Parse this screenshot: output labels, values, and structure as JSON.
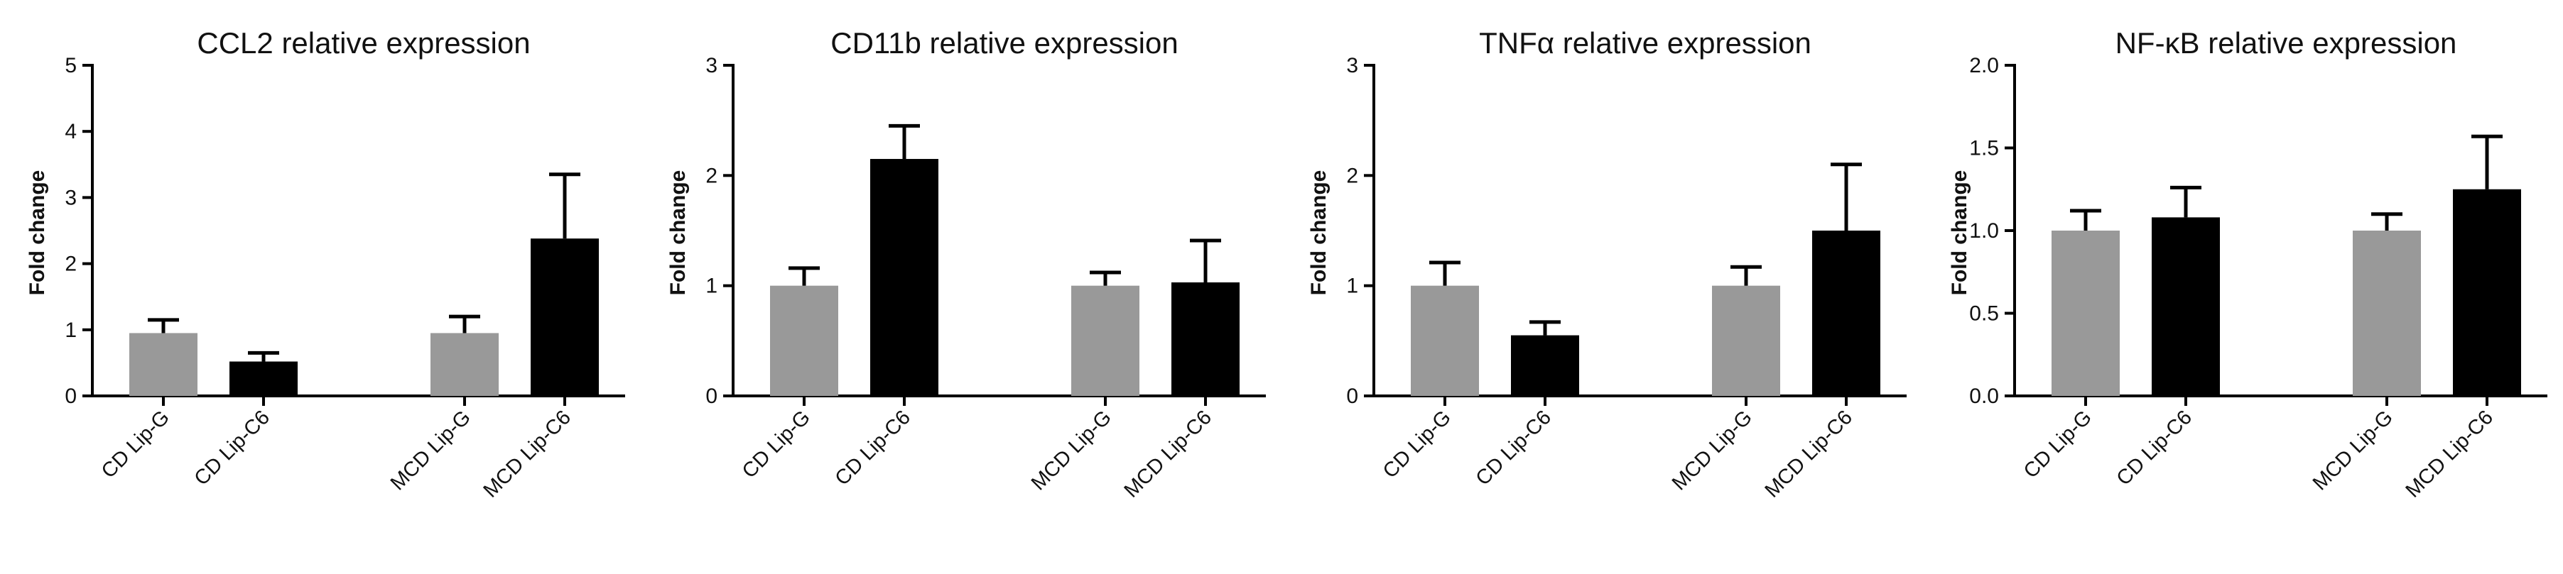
{
  "figure": {
    "chart_data": [
      {
        "type": "bar",
        "title": "CCL2 relative expression",
        "ylabel": "Fold change",
        "xlabel": "",
        "categories": [
          "CD Lip-G",
          "CD Lip-C6",
          "MCD Lip-G",
          "MCD Lip-C6"
        ],
        "values": [
          0.95,
          0.52,
          0.95,
          2.38
        ],
        "errors": [
          0.2,
          0.13,
          0.25,
          0.97
        ],
        "ylim": [
          0,
          5
        ],
        "yticks": [
          "0",
          "1",
          "2",
          "3",
          "4",
          "5"
        ],
        "grid": false,
        "bar_colors": [
          "#999999",
          "#000000",
          "#999999",
          "#000000"
        ]
      },
      {
        "type": "bar",
        "title": "CD11b relative expression",
        "ylabel": "Fold change",
        "xlabel": "",
        "categories": [
          "CD Lip-G",
          "CD Lip-C6",
          "MCD Lip-G",
          "MCD Lip-C6"
        ],
        "values": [
          1.0,
          2.15,
          1.0,
          1.03
        ],
        "errors": [
          0.16,
          0.3,
          0.12,
          0.38
        ],
        "ylim": [
          0,
          3
        ],
        "yticks": [
          "0",
          "1",
          "2",
          "3"
        ],
        "grid": false,
        "bar_colors": [
          "#999999",
          "#000000",
          "#999999",
          "#000000"
        ]
      },
      {
        "type": "bar",
        "title": "TNFα relative expression",
        "ylabel": "Fold change",
        "xlabel": "",
        "categories": [
          "CD Lip-G",
          "CD Lip-C6",
          "MCD Lip-G",
          "MCD Lip-C6"
        ],
        "values": [
          1.0,
          0.55,
          1.0,
          1.5
        ],
        "errors": [
          0.21,
          0.12,
          0.17,
          0.6
        ],
        "ylim": [
          0,
          3
        ],
        "yticks": [
          "0",
          "1",
          "2",
          "3"
        ],
        "grid": false,
        "bar_colors": [
          "#999999",
          "#000000",
          "#999999",
          "#000000"
        ]
      },
      {
        "type": "bar",
        "title": "NF-κB relative expression",
        "ylabel": "Fold change",
        "xlabel": "",
        "categories": [
          "CD Lip-G",
          "CD Lip-C6",
          "MCD Lip-G",
          "MCD Lip-C6"
        ],
        "values": [
          1.0,
          1.08,
          1.0,
          1.25
        ],
        "errors": [
          0.12,
          0.18,
          0.1,
          0.32
        ],
        "ylim": [
          0,
          2.0
        ],
        "yticks": [
          "0.0",
          "0.5",
          "1.0",
          "1.5",
          "2.0"
        ],
        "grid": false,
        "bar_colors": [
          "#999999",
          "#000000",
          "#999999",
          "#000000"
        ]
      }
    ]
  }
}
